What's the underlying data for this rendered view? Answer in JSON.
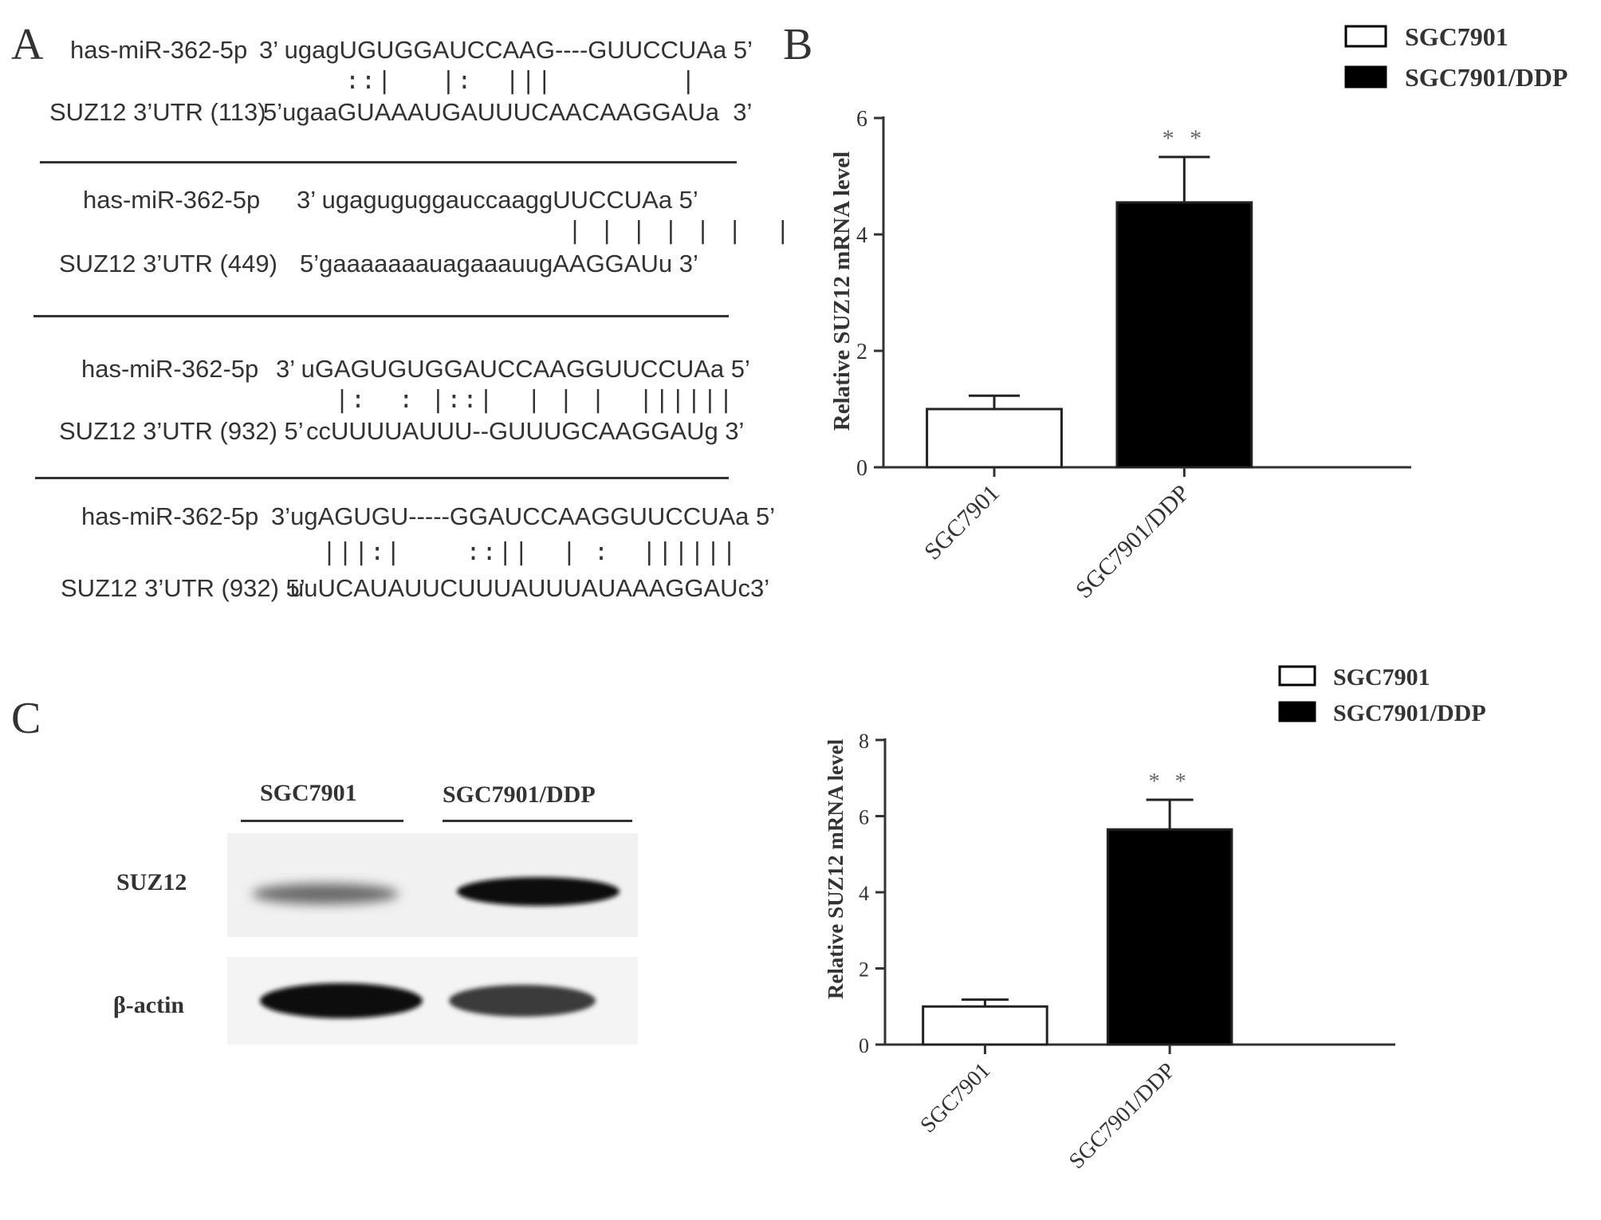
{
  "panels": {
    "a": {
      "letter": "A",
      "alignments": [
        {
          "mirna": "has-miR-362-5p",
          "mirna_seq": "3’ ugagUGUGGAUCCAAG----GUUCCUAa 5’",
          "pairing": "::|   |:  |||        |",
          "target": "SUZ12 3’UTR (113)",
          "target_seq": "5’ugaaGUAAAUGAUUUCAACAAGGAUa  3’"
        },
        {
          "mirna": "has-miR-362-5p",
          "mirna_seq": "3’ ugaguguggauccaaggUUCCUAa 5’",
          "pairing": "| | | | | |  |",
          "target": "SUZ12 3’UTR (449)",
          "target_seq": "5’gaaaaaaauagaaauugAAGGAUu 3’"
        },
        {
          "mirna": "has-miR-362-5p",
          "mirna_seq": "3’ uGAGUGUGGAUCCAAGGUUCCUAa 5’",
          "pairing": "|:  : |::|  | | |  ||||||",
          "target": "SUZ12 3’UTR (932) 5’",
          "target_seq": "ccUUUUAUUU--GUUUGCAAGGAUg 3’"
        },
        {
          "mirna": "has-miR-362-5p",
          "mirna_seq": "3’ugAGUGU-----GGAUCCAAGGUUCCUAa 5’",
          "pairing": "|||:|    ::||  | :  ||||||",
          "target": "SUZ12 3’UTR (932) 5’",
          "target_seq": "uuUCAUAUUCUUUAUUUAUAAAGGAUc3’"
        }
      ]
    },
    "b": {
      "letter": "B"
    },
    "c": {
      "letter": "C",
      "lanes": [
        "SGC7901",
        "SGC7901/DDP"
      ],
      "rows": [
        "SUZ12",
        "β-actin"
      ]
    }
  },
  "chart_data": [
    {
      "type": "bar",
      "categories": [
        "SGC7901",
        "SGC7901/DDP"
      ],
      "values": [
        1.0,
        4.55
      ],
      "errors": [
        0.23,
        0.78
      ],
      "fills": [
        "#ffffff",
        "#000000"
      ],
      "ylabel": "Relative SUZ12 mRNA level",
      "ylim": [
        0,
        6
      ],
      "yticks": [
        "0",
        "2",
        "4",
        "6"
      ],
      "significance": [
        "",
        "* *"
      ],
      "legend": [
        "SGC7901",
        "SGC7901/DDP"
      ],
      "legend_position": "top-right"
    },
    {
      "type": "bar",
      "categories": [
        "SGC7901",
        "SGC7901/DDP"
      ],
      "values": [
        1.0,
        5.65
      ],
      "errors": [
        0.18,
        0.78
      ],
      "fills": [
        "#ffffff",
        "#000000"
      ],
      "ylabel": "Relative SUZ12 mRNA  level",
      "ylim": [
        0,
        8
      ],
      "yticks": [
        "0",
        "2",
        "4",
        "6",
        "8"
      ],
      "significance": [
        "",
        "* *"
      ],
      "legend": [
        "SGC7901",
        "SGC7901/DDP"
      ],
      "legend_position": "top-right"
    }
  ]
}
